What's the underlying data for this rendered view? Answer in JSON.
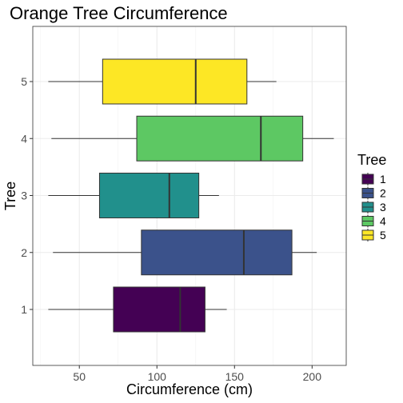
{
  "chart_data": {
    "type": "boxplot",
    "orientation": "horizontal",
    "title": "Orange Tree Circumference",
    "xlabel": "Circumference (cm)",
    "ylabel": "Tree",
    "xlim": [
      20,
      222
    ],
    "xticks": [
      50,
      100,
      150,
      200
    ],
    "categories": [
      "1",
      "2",
      "3",
      "4",
      "5"
    ],
    "series": [
      {
        "name": "1",
        "color": "#440154",
        "min": 30,
        "q1": 72,
        "median": 115,
        "q3": 131,
        "max": 145
      },
      {
        "name": "2",
        "color": "#3B528B",
        "min": 33,
        "q1": 90,
        "median": 156,
        "q3": 187,
        "max": 203
      },
      {
        "name": "3",
        "color": "#21908C",
        "min": 30,
        "q1": 63,
        "median": 108,
        "q3": 127,
        "max": 140
      },
      {
        "name": "4",
        "color": "#5DC863",
        "min": 32,
        "q1": 87,
        "median": 167,
        "q3": 194,
        "max": 214
      },
      {
        "name": "5",
        "color": "#FDE725",
        "min": 30,
        "q1": 65,
        "median": 125,
        "q3": 158,
        "max": 177
      }
    ],
    "legend": {
      "title": "Tree",
      "position": "right"
    },
    "grid": true,
    "theme": "bw"
  }
}
